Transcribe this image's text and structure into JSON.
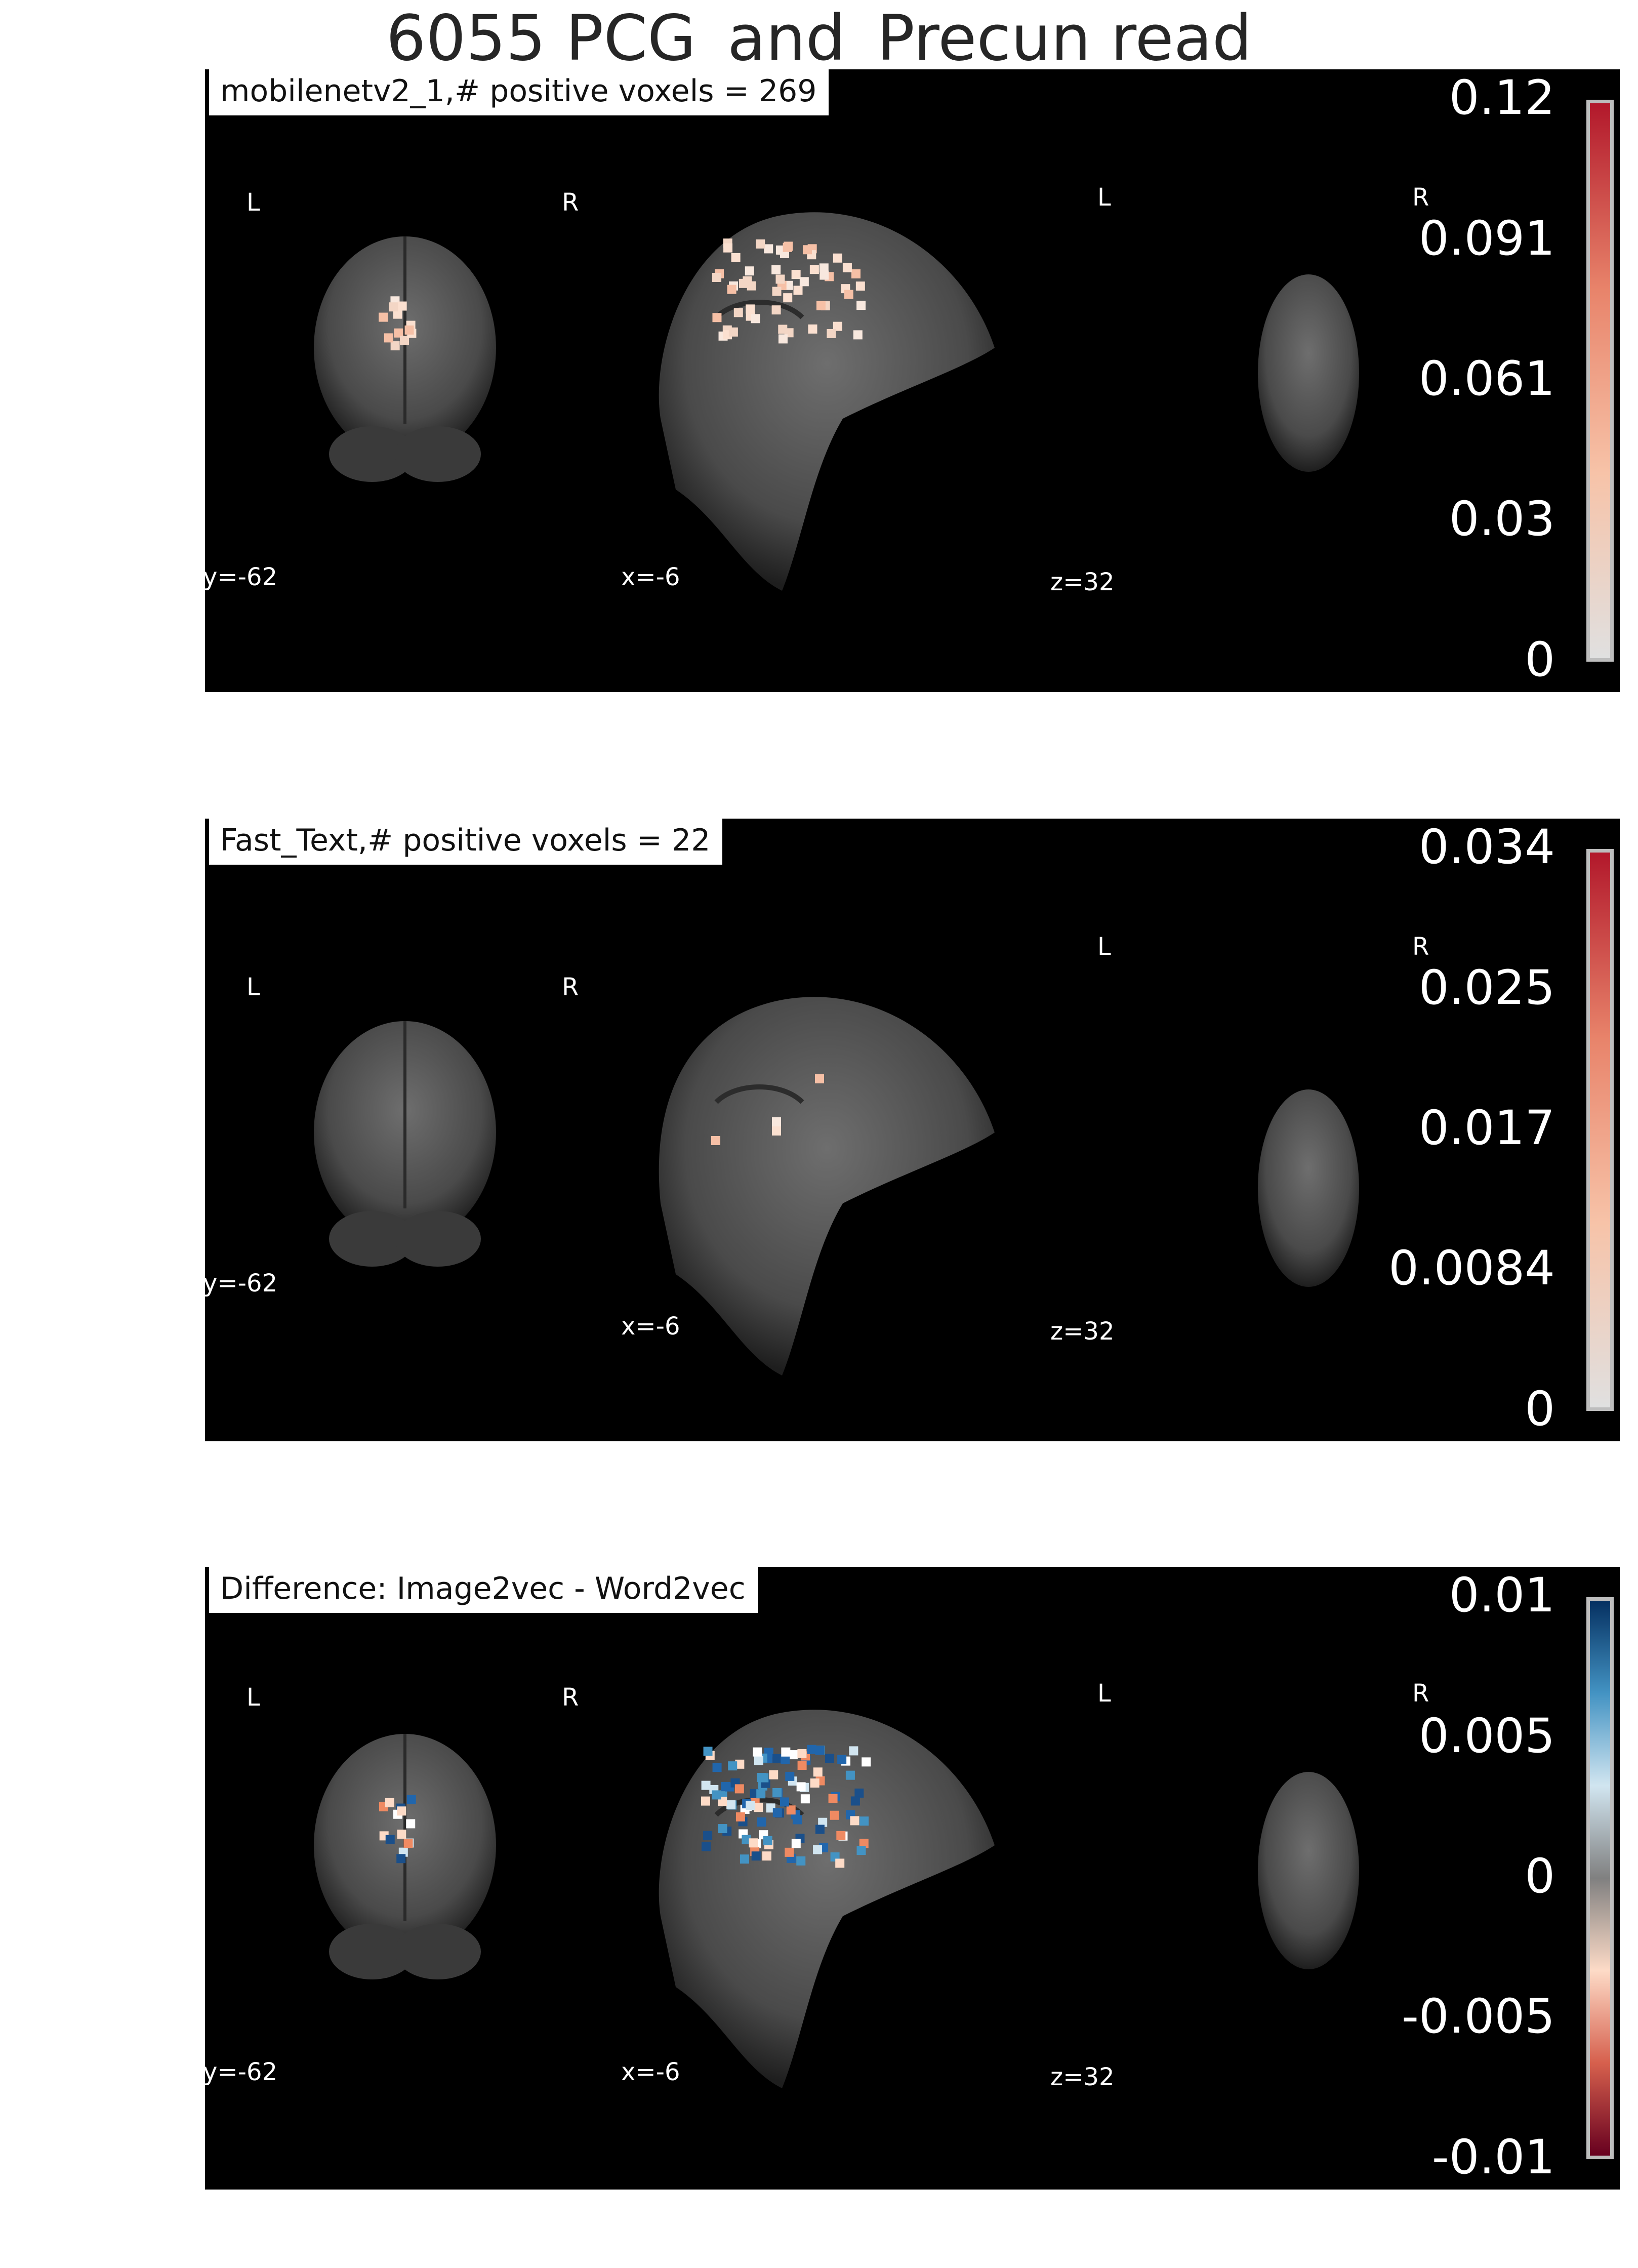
{
  "figure_title": "6055 PCG_and_Precun read",
  "panels": [
    {
      "label": "mobilenetv2_1,# positive voxels = 269",
      "orientation": {
        "coronal_left": "L",
        "coronal_right": "R",
        "axial_left": "L",
        "axial_right": "R"
      },
      "coords": {
        "coronal": "y=-62",
        "sagittal": "x=-6",
        "axial": "z=32"
      },
      "colorbar": {
        "ticks": [
          "0.12",
          "0.091",
          "0.061",
          "0.03",
          "0"
        ],
        "colors": [
          "#b2182b",
          "#e8836a",
          "#f7c3a8",
          "#e0e0e0"
        ]
      },
      "overlay": "positive"
    },
    {
      "label": "Fast_Text,# positive voxels = 22",
      "orientation": {
        "coronal_left": "L",
        "coronal_right": "R",
        "axial_left": "L",
        "axial_right": "R"
      },
      "coords": {
        "coronal": "y=-62",
        "sagittal": "x=-6",
        "axial": "z=32"
      },
      "colorbar": {
        "ticks": [
          "0.034",
          "0.025",
          "0.017",
          "0.0084",
          "0"
        ],
        "colors": [
          "#b2182b",
          "#e8836a",
          "#f7c3a8",
          "#e0e0e0"
        ]
      },
      "overlay": "sparse"
    },
    {
      "label": "Difference: Image2vec - Word2vec",
      "orientation": {
        "coronal_left": "L",
        "coronal_right": "R",
        "axial_left": "L",
        "axial_right": "R"
      },
      "coords": {
        "coronal": "y=-62",
        "sagittal": "x=-6",
        "axial": "z=32"
      },
      "colorbar": {
        "ticks": [
          "0.01",
          "0.005",
          "0",
          "-0.005",
          "-0.01"
        ],
        "colors": [
          "#053061",
          "#4393c3",
          "#d1e5f0",
          "#808080",
          "#fddbc7",
          "#d6604d",
          "#67001f"
        ]
      },
      "overlay": "diverging"
    }
  ]
}
